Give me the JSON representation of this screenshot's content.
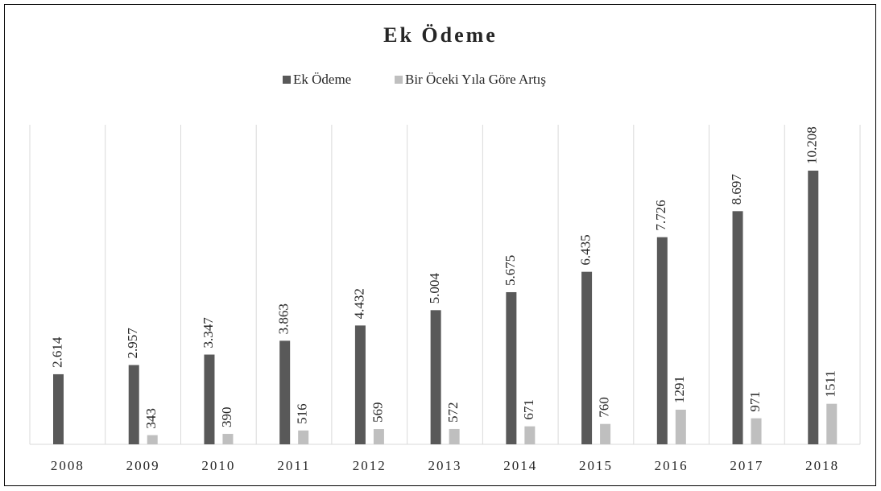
{
  "chart_data": {
    "type": "bar",
    "title": "Ek Ödeme",
    "categories": [
      "2008",
      "2009",
      "2010",
      "2011",
      "2012",
      "2013",
      "2014",
      "2015",
      "2016",
      "2017",
      "2018"
    ],
    "series": [
      {
        "name": "Ek Ödeme",
        "color": "#595959",
        "values": [
          2614,
          2957,
          3347,
          3863,
          4432,
          5004,
          5675,
          6435,
          7726,
          8697,
          10208
        ],
        "value_labels": [
          "2.614",
          "2.957",
          "3.347",
          "3.863",
          "4.432",
          "5.004",
          "5.675",
          "6.435",
          "7.726",
          "8.697",
          "10.208"
        ]
      },
      {
        "name": "Bir Öceki Yıla Göre Artış",
        "color": "#bfbfbf",
        "values": [
          null,
          343,
          390,
          516,
          569,
          572,
          671,
          760,
          1291,
          971,
          1511
        ]
      }
    ],
    "legend": "top"
  }
}
